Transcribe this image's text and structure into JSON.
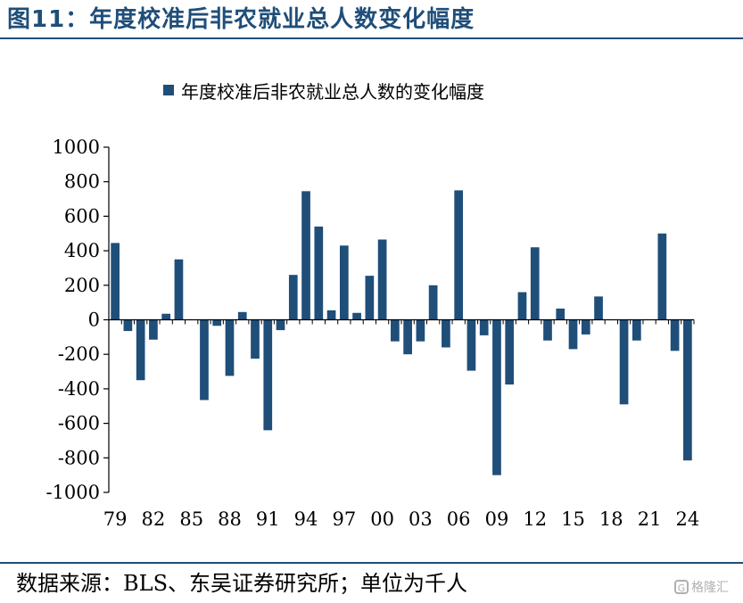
{
  "header": {
    "title": "图11：年度校准后非农就业总人数变化幅度"
  },
  "footer": {
    "source": "数据来源：BLS、东吴证券研究所；单位为千人",
    "watermark": "格隆汇"
  },
  "colors": {
    "bar": "#1f4e79",
    "accent": "#1f4e79",
    "axis": "#000000"
  },
  "chart_data": {
    "type": "bar",
    "title": "",
    "xlabel": "",
    "ylabel": "",
    "legend": {
      "position": "top",
      "entries": [
        "年度校准后非农就业总人数的变化幅度"
      ]
    },
    "ylim": [
      -1000,
      1000
    ],
    "yticks": [
      1000,
      800,
      600,
      400,
      200,
      0,
      -200,
      -400,
      -600,
      -800,
      -1000
    ],
    "ytick_labels": [
      "1000",
      "800",
      "600",
      "400",
      "200",
      "0",
      "-200",
      "-400",
      "-600",
      "-800",
      "-1000"
    ],
    "xtick_labels": [
      "79",
      "82",
      "85",
      "88",
      "91",
      "94",
      "97",
      "00",
      "03",
      "06",
      "09",
      "12",
      "15",
      "18",
      "21",
      "24"
    ],
    "categories": [
      "1979",
      "1980",
      "1981",
      "1982",
      "1983",
      "1984",
      "1985",
      "1986",
      "1987",
      "1988",
      "1989",
      "1990",
      "1991",
      "1992",
      "1993",
      "1994",
      "1995",
      "1996",
      "1997",
      "1998",
      "1999",
      "2000",
      "2001",
      "2002",
      "2003",
      "2004",
      "2005",
      "2006",
      "2007",
      "2008",
      "2009",
      "2010",
      "2011",
      "2012",
      "2013",
      "2014",
      "2015",
      "2016",
      "2017",
      "2018",
      "2019",
      "2020",
      "2021",
      "2022",
      "2023",
      "2024"
    ],
    "series": [
      {
        "name": "年度校准后非农就业总人数的变化幅度",
        "values": [
          445,
          -65,
          -350,
          -115,
          35,
          350,
          0,
          -465,
          -35,
          -325,
          45,
          -225,
          -640,
          -60,
          260,
          745,
          540,
          55,
          430,
          40,
          255,
          465,
          -125,
          -200,
          -125,
          200,
          -160,
          750,
          -295,
          -90,
          -900,
          -375,
          160,
          420,
          -120,
          65,
          -170,
          -85,
          135,
          0,
          -490,
          -120,
          0,
          500,
          -180,
          -815
        ]
      }
    ]
  }
}
